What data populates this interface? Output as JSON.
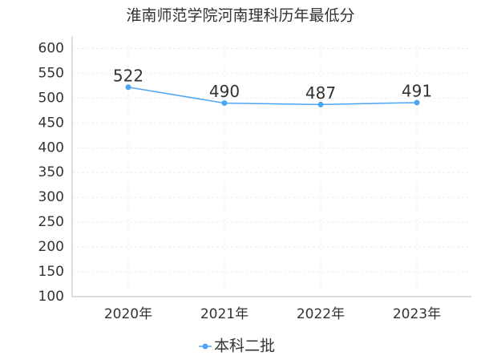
{
  "chart_data": {
    "type": "line",
    "title": "淮南师范学院河南理科历年最低分",
    "categories": [
      "2020年",
      "2021年",
      "2022年",
      "2023年"
    ],
    "series": [
      {
        "name": "本科二批",
        "color": "#4da6f5",
        "values": [
          522,
          490,
          487,
          491
        ]
      }
    ],
    "ylim": [
      100,
      625
    ],
    "yticks": [
      100,
      150,
      200,
      250,
      300,
      350,
      400,
      450,
      500,
      550,
      600
    ],
    "grid": true,
    "legend": "bottom"
  }
}
